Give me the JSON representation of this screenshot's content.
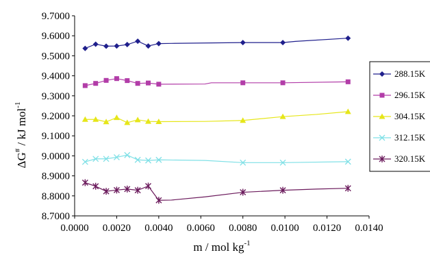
{
  "chart_data": {
    "type": "line",
    "ylabel_base": "ΔG",
    "ylabel_sup": "#",
    "ylabel_unit": " / kJ mol",
    "ylabel_unit_sup": "-1",
    "xlabel_base": "m / mol kg",
    "xlabel_sup": "-1",
    "xlim": [
      0.0,
      0.014
    ],
    "ylim": [
      8.7,
      9.7
    ],
    "x_ticks": [
      "0.0000",
      "0.0020",
      "0.0040",
      "0.0060",
      "0.0080",
      "0.0100",
      "0.0120",
      "0.0140"
    ],
    "y_ticks": [
      "8.7000",
      "8.8000",
      "8.9000",
      "9.0000",
      "9.1000",
      "9.2000",
      "9.3000",
      "9.4000",
      "9.5000",
      "9.6000",
      "9.7000"
    ],
    "grid": false,
    "legend_position": "right",
    "series": [
      {
        "name": "288.15K",
        "color": "#1f1f8c",
        "marker": "diamond",
        "points": [
          [
            0.0005,
            9.537
          ],
          [
            0.001,
            9.558
          ],
          [
            0.0015,
            9.548
          ],
          [
            0.002,
            9.549
          ],
          [
            0.0025,
            9.556
          ],
          [
            0.003,
            9.573
          ],
          [
            0.0035,
            9.549
          ],
          [
            0.004,
            9.561
          ]
        ],
        "line": [
          [
            0.0005,
            9.537
          ],
          [
            0.001,
            9.558
          ],
          [
            0.0015,
            9.548
          ],
          [
            0.002,
            9.549
          ],
          [
            0.0025,
            9.556
          ],
          [
            0.003,
            9.573
          ],
          [
            0.0035,
            9.549
          ],
          [
            0.004,
            9.561
          ],
          [
            0.0046,
            9.562
          ],
          [
            0.008,
            9.566
          ],
          [
            0.0099,
            9.566
          ],
          [
            0.0105,
            9.572
          ],
          [
            0.013,
            9.588
          ]
        ],
        "far_points": [
          [
            0.008,
            9.566
          ],
          [
            0.0099,
            9.566
          ],
          [
            0.013,
            9.588
          ]
        ]
      },
      {
        "name": "296.15K",
        "color": "#b23da8",
        "marker": "square",
        "points": [
          [
            0.0005,
            9.351
          ],
          [
            0.001,
            9.362
          ],
          [
            0.0015,
            9.377
          ],
          [
            0.002,
            9.386
          ],
          [
            0.0025,
            9.376
          ],
          [
            0.003,
            9.362
          ],
          [
            0.0035,
            9.364
          ],
          [
            0.004,
            9.358
          ]
        ],
        "line": [
          [
            0.0005,
            9.351
          ],
          [
            0.001,
            9.362
          ],
          [
            0.0015,
            9.377
          ],
          [
            0.002,
            9.386
          ],
          [
            0.0025,
            9.376
          ],
          [
            0.003,
            9.362
          ],
          [
            0.0035,
            9.364
          ],
          [
            0.004,
            9.358
          ],
          [
            0.0062,
            9.359
          ],
          [
            0.0065,
            9.365
          ],
          [
            0.008,
            9.365
          ],
          [
            0.0099,
            9.365
          ],
          [
            0.013,
            9.37
          ]
        ],
        "far_points": [
          [
            0.008,
            9.365
          ],
          [
            0.0099,
            9.365
          ],
          [
            0.013,
            9.37
          ]
        ]
      },
      {
        "name": "304.15K",
        "color": "#e6e619",
        "marker": "triangle",
        "points": [
          [
            0.0005,
            9.182
          ],
          [
            0.001,
            9.182
          ],
          [
            0.0015,
            9.17
          ],
          [
            0.002,
            9.191
          ],
          [
            0.0025,
            9.166
          ],
          [
            0.003,
            9.18
          ],
          [
            0.0035,
            9.172
          ],
          [
            0.004,
            9.171
          ]
        ],
        "line": [
          [
            0.0005,
            9.182
          ],
          [
            0.001,
            9.182
          ],
          [
            0.0015,
            9.17
          ],
          [
            0.002,
            9.191
          ],
          [
            0.0025,
            9.166
          ],
          [
            0.003,
            9.18
          ],
          [
            0.0035,
            9.172
          ],
          [
            0.004,
            9.171
          ],
          [
            0.0062,
            9.172
          ],
          [
            0.008,
            9.177
          ],
          [
            0.0099,
            9.196
          ],
          [
            0.0115,
            9.207
          ],
          [
            0.013,
            9.221
          ]
        ],
        "far_points": [
          [
            0.008,
            9.177
          ],
          [
            0.0099,
            9.196
          ],
          [
            0.013,
            9.221
          ]
        ]
      },
      {
        "name": "312.15K",
        "color": "#7fe0e6",
        "marker": "x",
        "points": [
          [
            0.0005,
            8.97
          ],
          [
            0.001,
            8.985
          ],
          [
            0.0015,
            8.985
          ],
          [
            0.002,
            8.993
          ],
          [
            0.0025,
            9.004
          ],
          [
            0.003,
            8.98
          ],
          [
            0.0035,
            8.977
          ],
          [
            0.004,
            8.98
          ]
        ],
        "line": [
          [
            0.0005,
            8.97
          ],
          [
            0.001,
            8.985
          ],
          [
            0.0015,
            8.985
          ],
          [
            0.002,
            8.993
          ],
          [
            0.0025,
            9.004
          ],
          [
            0.003,
            8.98
          ],
          [
            0.0035,
            8.977
          ],
          [
            0.004,
            8.98
          ],
          [
            0.0062,
            8.977
          ],
          [
            0.008,
            8.966
          ],
          [
            0.0099,
            8.966
          ],
          [
            0.013,
            8.971
          ]
        ],
        "far_points": [
          [
            0.008,
            8.966
          ],
          [
            0.0099,
            8.966
          ],
          [
            0.013,
            8.971
          ]
        ]
      },
      {
        "name": "320.15K",
        "color": "#6b1a5c",
        "marker": "star",
        "points": [
          [
            0.0005,
            8.866
          ],
          [
            0.001,
            8.848
          ],
          [
            0.0015,
            8.823
          ],
          [
            0.002,
            8.829
          ],
          [
            0.0025,
            8.834
          ],
          [
            0.003,
            8.828
          ],
          [
            0.0035,
            8.849
          ],
          [
            0.004,
            8.778
          ]
        ],
        "line": [
          [
            0.0005,
            8.866
          ],
          [
            0.001,
            8.848
          ],
          [
            0.0015,
            8.823
          ],
          [
            0.002,
            8.829
          ],
          [
            0.0025,
            8.834
          ],
          [
            0.003,
            8.828
          ],
          [
            0.0035,
            8.849
          ],
          [
            0.004,
            8.778
          ],
          [
            0.0046,
            8.779
          ],
          [
            0.0062,
            8.795
          ],
          [
            0.008,
            8.818
          ],
          [
            0.0099,
            8.828
          ],
          [
            0.0115,
            8.834
          ],
          [
            0.013,
            8.838
          ]
        ],
        "far_points": [
          [
            0.008,
            8.818
          ],
          [
            0.0099,
            8.828
          ],
          [
            0.013,
            8.838
          ]
        ]
      }
    ]
  }
}
